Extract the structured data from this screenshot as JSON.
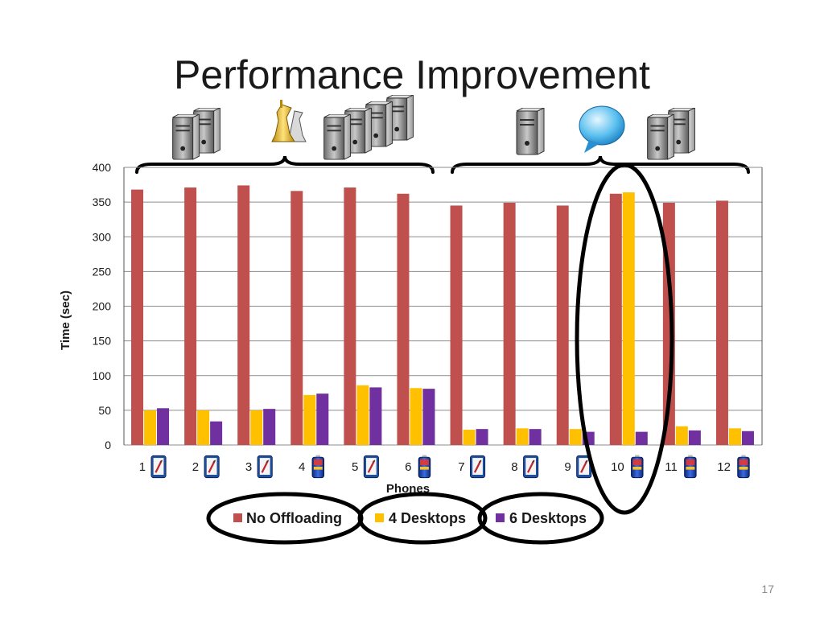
{
  "slide": {
    "title": "Performance Improvement",
    "slide_number": "17"
  },
  "colors": {
    "no_offloading": "#c0504d",
    "desktops_4": "#ffc000",
    "desktops_6": "#7030a0",
    "grid": "#8c8c8c",
    "annotation": "#000000"
  },
  "icons": {
    "group_left": [
      "server-pair-icon",
      "chess-pieces-icon",
      "server-cluster-icon"
    ],
    "group_right": [
      "server-single-icon",
      "chat-bubble-icon",
      "server-pair-icon"
    ],
    "phone_types": [
      "pen-phone-icon",
      "pen-phone-icon",
      "pen-phone-icon",
      "battery-phone-icon",
      "pen-phone-icon",
      "battery-phone-icon",
      "pen-phone-icon",
      "pen-phone-icon",
      "pen-phone-icon",
      "battery-phone-icon",
      "battery-phone-icon",
      "battery-phone-icon"
    ]
  },
  "chart_data": {
    "type": "bar",
    "xlabel": "Phones",
    "ylabel": "Time (sec)",
    "ylim": [
      0,
      400
    ],
    "yticks": [
      0,
      50,
      100,
      150,
      200,
      250,
      300,
      350,
      400
    ],
    "grid": true,
    "legend_position": "bottom",
    "categories": [
      "1",
      "2",
      "3",
      "4",
      "5",
      "6",
      "7",
      "8",
      "9",
      "10",
      "11",
      "12"
    ],
    "series": [
      {
        "name": "No Offloading",
        "values": [
          368,
          371,
          374,
          366,
          371,
          362,
          345,
          349,
          345,
          362,
          349,
          352
        ]
      },
      {
        "name": "4 Desktops",
        "values": [
          50,
          50,
          50,
          72,
          86,
          82,
          22,
          24,
          23,
          364,
          27,
          24
        ]
      },
      {
        "name": "6 Desktops",
        "values": [
          53,
          34,
          52,
          74,
          83,
          81,
          23,
          23,
          19,
          19,
          21,
          20
        ]
      }
    ]
  }
}
